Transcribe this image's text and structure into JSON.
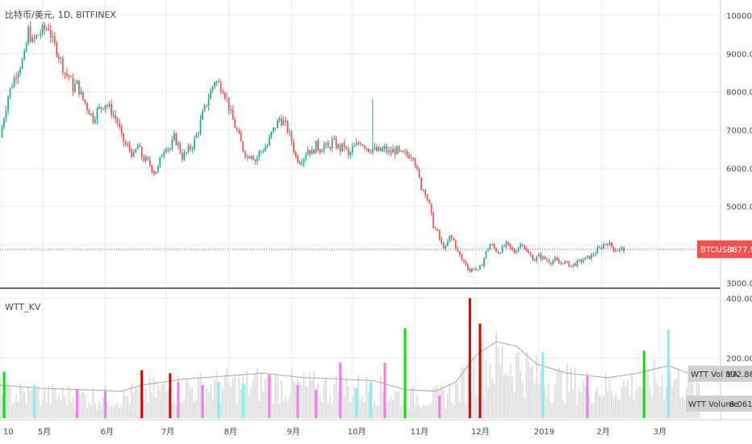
{
  "chart_data": [
    {
      "type": "candlestick",
      "title": "比特币/美元, 1D, BITFINEX",
      "symbol_tag": "BTCUSD",
      "last_price": "3877.9",
      "ylim": [
        2900,
        10400
      ],
      "y_ticks": [
        "10000.0",
        "9000.0",
        "8000.0",
        "7000.0",
        "6000.0",
        "5000.0",
        "4000.0",
        "3000.0"
      ],
      "y_tick_values": [
        10000,
        9000,
        8000,
        7000,
        6000,
        5000,
        4000,
        3000
      ],
      "x_ticks": [
        {
          "label": "10",
          "day": 0
        },
        {
          "label": "5月",
          "day": 21
        },
        {
          "label": "6月",
          "day": 52
        },
        {
          "label": "7月",
          "day": 82
        },
        {
          "label": "8月",
          "day": 113
        },
        {
          "label": "9月",
          "day": 144
        },
        {
          "label": "10月",
          "day": 174
        },
        {
          "label": "11月",
          "day": 205
        },
        {
          "label": "12月",
          "day": 235
        },
        {
          "label": "2019",
          "day": 266
        },
        {
          "label": "2月",
          "day": 297
        },
        {
          "label": "3月",
          "day": 325
        }
      ],
      "colors": {
        "up": "#26a69a",
        "down": "#ef5350",
        "price_line": "#ef5350",
        "wick": "#26a69a"
      },
      "path": [
        [
          0,
          6800
        ],
        [
          4,
          7900
        ],
        [
          8,
          8500
        ],
        [
          12,
          8900
        ],
        [
          14,
          9600
        ],
        [
          16,
          9300
        ],
        [
          19,
          9500
        ],
        [
          21,
          9600
        ],
        [
          24,
          9700
        ],
        [
          26,
          9300
        ],
        [
          28,
          9100
        ],
        [
          30,
          8800
        ],
        [
          32,
          8500
        ],
        [
          34,
          8400
        ],
        [
          36,
          8100
        ],
        [
          38,
          8200
        ],
        [
          40,
          7900
        ],
        [
          43,
          7600
        ],
        [
          46,
          7300
        ],
        [
          48,
          7500
        ],
        [
          50,
          7600
        ],
        [
          52,
          7700
        ],
        [
          55,
          7500
        ],
        [
          58,
          7200
        ],
        [
          60,
          6800
        ],
        [
          62,
          6600
        ],
        [
          64,
          6500
        ],
        [
          66,
          6300
        ],
        [
          68,
          6600
        ],
        [
          70,
          6300
        ],
        [
          72,
          6200
        ],
        [
          74,
          6100
        ],
        [
          76,
          5900
        ],
        [
          78,
          6000
        ],
        [
          80,
          6400
        ],
        [
          82,
          6600
        ],
        [
          84,
          6500
        ],
        [
          86,
          6800
        ],
        [
          88,
          6600
        ],
        [
          90,
          6300
        ],
        [
          92,
          6400
        ],
        [
          95,
          6600
        ],
        [
          98,
          7000
        ],
        [
          100,
          7400
        ],
        [
          102,
          7700
        ],
        [
          104,
          8000
        ],
        [
          106,
          8300
        ],
        [
          108,
          8200
        ],
        [
          110,
          8100
        ],
        [
          112,
          7800
        ],
        [
          114,
          7400
        ],
        [
          116,
          7100
        ],
        [
          118,
          6800
        ],
        [
          120,
          6500
        ],
        [
          122,
          6300
        ],
        [
          124,
          6400
        ],
        [
          126,
          6200
        ],
        [
          128,
          6400
        ],
        [
          130,
          6500
        ],
        [
          132,
          6600
        ],
        [
          134,
          6900
        ],
        [
          136,
          7100
        ],
        [
          138,
          7300
        ],
        [
          140,
          7200
        ],
        [
          142,
          7000
        ],
        [
          144,
          6700
        ],
        [
          146,
          6300
        ],
        [
          148,
          6200
        ],
        [
          150,
          6300
        ],
        [
          152,
          6500
        ],
        [
          154,
          6400
        ],
        [
          156,
          6600
        ],
        [
          158,
          6500
        ],
        [
          160,
          6600
        ],
        [
          162,
          6500
        ],
        [
          164,
          6700
        ],
        [
          166,
          6600
        ],
        [
          168,
          6500
        ],
        [
          170,
          6600
        ],
        [
          172,
          6300
        ],
        [
          174,
          6500
        ],
        [
          176,
          6600
        ],
        [
          178,
          6700
        ],
        [
          180,
          6600
        ],
        [
          182,
          6500
        ],
        [
          184,
          6500
        ],
        [
          186,
          6450
        ],
        [
          188,
          6450
        ],
        [
          190,
          6500
        ],
        [
          192,
          6400
        ],
        [
          194,
          6450
        ],
        [
          196,
          6450
        ],
        [
          198,
          6350
        ],
        [
          200,
          6350
        ],
        [
          204,
          6350
        ],
        [
          206,
          5900
        ],
        [
          208,
          5500
        ],
        [
          210,
          5400
        ],
        [
          212,
          5000
        ],
        [
          214,
          4500
        ],
        [
          216,
          4300
        ],
        [
          218,
          4000
        ],
        [
          220,
          3900
        ],
        [
          222,
          4200
        ],
        [
          224,
          4100
        ],
        [
          226,
          3800
        ],
        [
          228,
          3600
        ],
        [
          230,
          3500
        ],
        [
          232,
          3300
        ],
        [
          234,
          3400
        ],
        [
          236,
          3300
        ],
        [
          238,
          3500
        ],
        [
          240,
          3800
        ],
        [
          242,
          4000
        ],
        [
          244,
          3900
        ],
        [
          246,
          3800
        ],
        [
          248,
          3900
        ],
        [
          250,
          4000
        ],
        [
          252,
          3900
        ],
        [
          254,
          3800
        ],
        [
          256,
          3950
        ],
        [
          258,
          4050
        ],
        [
          260,
          3800
        ],
        [
          262,
          3700
        ],
        [
          264,
          3600
        ],
        [
          266,
          3700
        ],
        [
          268,
          3650
        ],
        [
          270,
          3600
        ],
        [
          272,
          3550
        ],
        [
          274,
          3600
        ],
        [
          276,
          3500
        ],
        [
          278,
          3550
        ],
        [
          280,
          3500
        ],
        [
          282,
          3450
        ],
        [
          284,
          3500
        ],
        [
          286,
          3550
        ],
        [
          288,
          3600
        ],
        [
          290,
          3650
        ],
        [
          292,
          3700
        ],
        [
          294,
          3800
        ],
        [
          296,
          3900
        ],
        [
          298,
          4000
        ],
        [
          300,
          4050
        ],
        [
          302,
          3950
        ],
        [
          304,
          3850
        ],
        [
          306,
          3880
        ],
        [
          308,
          3878
        ]
      ],
      "spike": {
        "day": 184,
        "high": 7800
      }
    },
    {
      "type": "bar",
      "title": "WTT_KV",
      "ylim": [
        0,
        420000
      ],
      "y_ticks": [
        "400.000",
        "200.000"
      ],
      "y_tick_values": [
        400000,
        200000
      ],
      "legend": [
        {
          "name": "WTT Vol MA",
          "value": "132.865"
        },
        {
          "name": "WTT Volume",
          "value": "8.061"
        }
      ],
      "colors": {
        "ma": "#a8a8a8",
        "volume": "#e0e0e0",
        "green": "#00e600",
        "red": "#d50000",
        "cyan": "#80f0f0",
        "pink": "#f07cf0"
      },
      "highlight_bars": [
        {
          "day": 2,
          "value": 155000,
          "color": "green"
        },
        {
          "day": 17,
          "value": 110000,
          "color": "cyan"
        },
        {
          "day": 38,
          "value": 95000,
          "color": "pink"
        },
        {
          "day": 52,
          "value": 90000,
          "color": "pink"
        },
        {
          "day": 70,
          "value": 160000,
          "color": "red"
        },
        {
          "day": 84,
          "value": 150000,
          "color": "red"
        },
        {
          "day": 88,
          "value": 120000,
          "color": "pink"
        },
        {
          "day": 100,
          "value": 110000,
          "color": "pink"
        },
        {
          "day": 108,
          "value": 120000,
          "color": "cyan"
        },
        {
          "day": 120,
          "value": 115000,
          "color": "cyan"
        },
        {
          "day": 133,
          "value": 145000,
          "color": "pink"
        },
        {
          "day": 147,
          "value": 110000,
          "color": "pink"
        },
        {
          "day": 156,
          "value": 95000,
          "color": "pink"
        },
        {
          "day": 168,
          "value": 185000,
          "color": "pink"
        },
        {
          "day": 176,
          "value": 100000,
          "color": "cyan"
        },
        {
          "day": 183,
          "value": 120000,
          "color": "cyan"
        },
        {
          "day": 190,
          "value": 185000,
          "color": "pink"
        },
        {
          "day": 200,
          "value": 300000,
          "color": "green"
        },
        {
          "day": 217,
          "value": 75000,
          "color": "pink"
        },
        {
          "day": 232,
          "value": 400000,
          "color": "red"
        },
        {
          "day": 237,
          "value": 315000,
          "color": "red"
        },
        {
          "day": 268,
          "value": 220000,
          "color": "cyan"
        },
        {
          "day": 290,
          "value": 140000,
          "color": "pink"
        },
        {
          "day": 318,
          "value": 225000,
          "color": "green"
        },
        {
          "day": 330,
          "value": 295000,
          "color": "cyan"
        }
      ],
      "ma": [
        [
          0,
          110000
        ],
        [
          20,
          100000
        ],
        [
          40,
          95000
        ],
        [
          60,
          90000
        ],
        [
          70,
          110000
        ],
        [
          90,
          130000
        ],
        [
          110,
          140000
        ],
        [
          130,
          150000
        ],
        [
          150,
          135000
        ],
        [
          170,
          130000
        ],
        [
          185,
          125000
        ],
        [
          200,
          95000
        ],
        [
          215,
          90000
        ],
        [
          225,
          120000
        ],
        [
          235,
          210000
        ],
        [
          245,
          255000
        ],
        [
          255,
          240000
        ],
        [
          265,
          180000
        ],
        [
          280,
          150000
        ],
        [
          300,
          135000
        ],
        [
          315,
          150000
        ],
        [
          330,
          175000
        ],
        [
          340,
          150000
        ],
        [
          345,
          133000
        ]
      ]
    }
  ]
}
